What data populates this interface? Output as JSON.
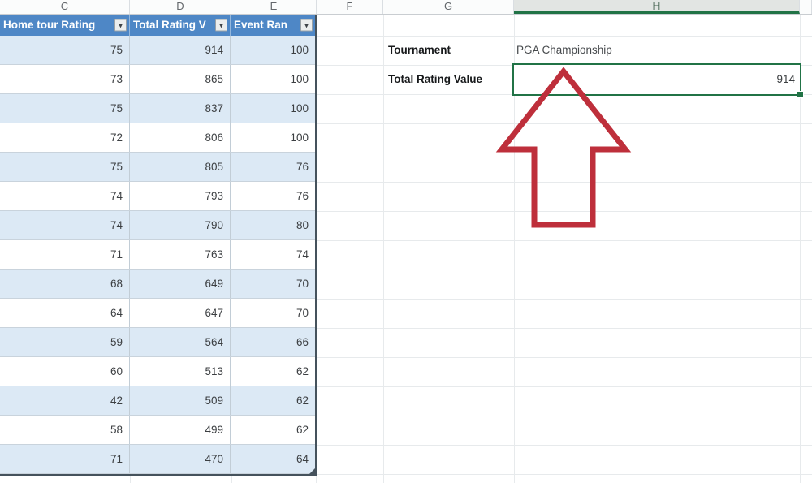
{
  "sheet": {
    "column_headers": {
      "letters": [
        "C",
        "D",
        "E",
        "F",
        "G",
        "H",
        ""
      ],
      "selected": "H"
    },
    "table": {
      "headers": [
        "Home tour Rating",
        "Total Rating V",
        "Event Ran"
      ],
      "rows": [
        [
          75,
          914,
          100
        ],
        [
          73,
          865,
          100
        ],
        [
          75,
          837,
          100
        ],
        [
          72,
          806,
          100
        ],
        [
          75,
          805,
          76
        ],
        [
          74,
          793,
          76
        ],
        [
          74,
          790,
          80
        ],
        [
          71,
          763,
          74
        ],
        [
          68,
          649,
          70
        ],
        [
          64,
          647,
          70
        ],
        [
          59,
          564,
          66
        ],
        [
          60,
          513,
          62
        ],
        [
          42,
          509,
          62
        ],
        [
          58,
          499,
          62
        ],
        [
          71,
          470,
          64
        ]
      ]
    },
    "panel": {
      "tournament_label": "Tournament",
      "tournament_value": "PGA Championship",
      "total_rating_label": "Total Rating Value",
      "total_rating_value": "914"
    },
    "icons": {
      "filter_dropdown_glyph": "▾"
    },
    "colors": {
      "table_header_blue": "#4E87C6",
      "banded_row_blue": "#DCE9F5",
      "selection_green": "#217346",
      "selected_column_header_bg": "#E2E5E3",
      "selected_column_header_text": "#3A5A47",
      "arrow_red": "#BE2F3B",
      "table_border": "#45525C"
    }
  }
}
